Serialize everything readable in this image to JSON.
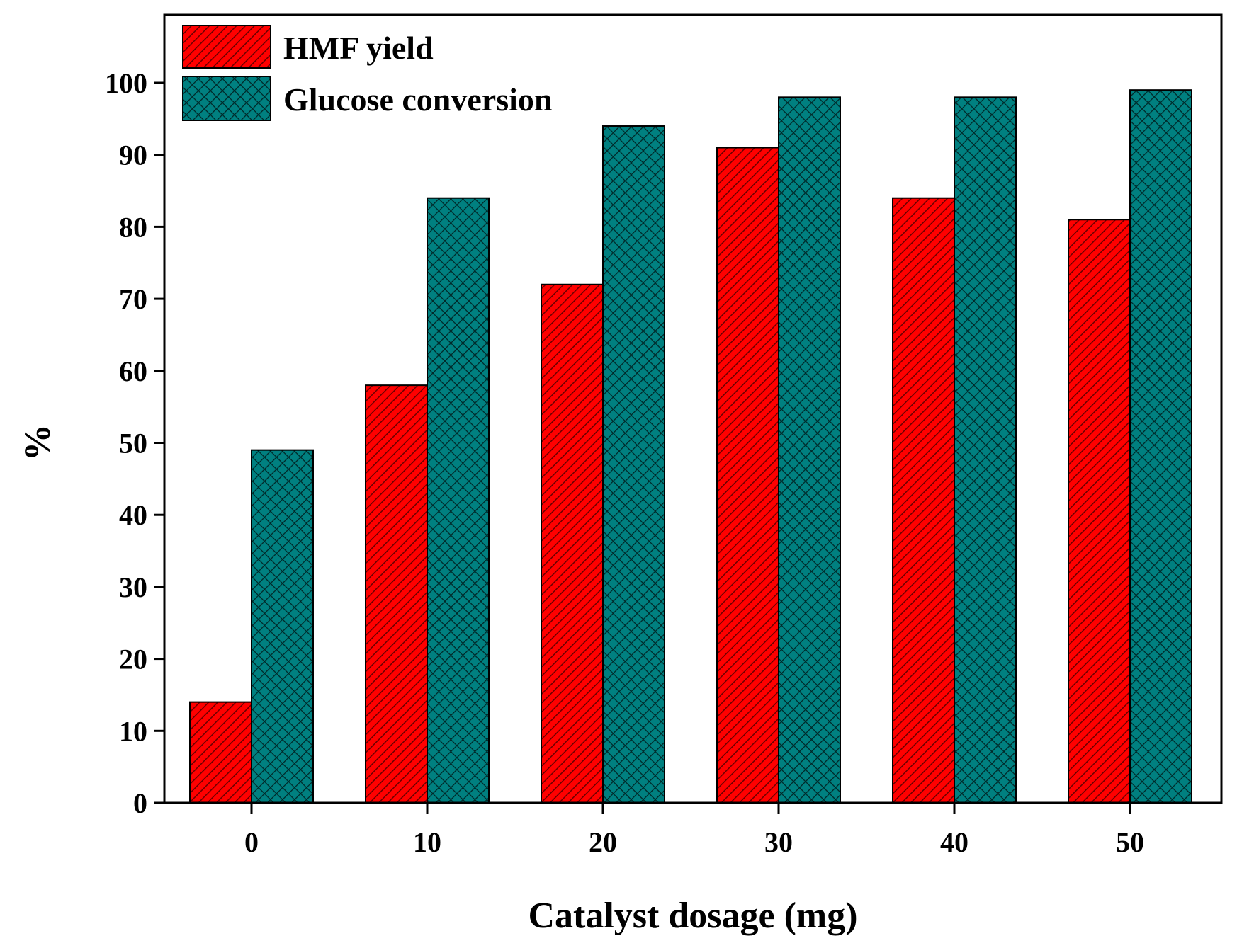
{
  "chart_data": {
    "type": "bar",
    "xlabel": "Catalyst dosage (mg)",
    "ylabel": "%",
    "categories": [
      "0",
      "10",
      "20",
      "30",
      "40",
      "50"
    ],
    "ylim": [
      0,
      100
    ],
    "yticks": [
      "0",
      "10",
      "20",
      "30",
      "40",
      "50",
      "60",
      "70",
      "80",
      "90",
      "100"
    ],
    "grid": false,
    "legend_position": "top-left",
    "series": [
      {
        "name": "HMF yield",
        "values": [
          14,
          58,
          72,
          91,
          84,
          81
        ],
        "color": "#ff0000",
        "pattern": "diagonal-hatch"
      },
      {
        "name": "Glucose conversion",
        "values": [
          49,
          84,
          94,
          98,
          98,
          99
        ],
        "color": "#008080",
        "pattern": "crosshatch"
      }
    ]
  }
}
